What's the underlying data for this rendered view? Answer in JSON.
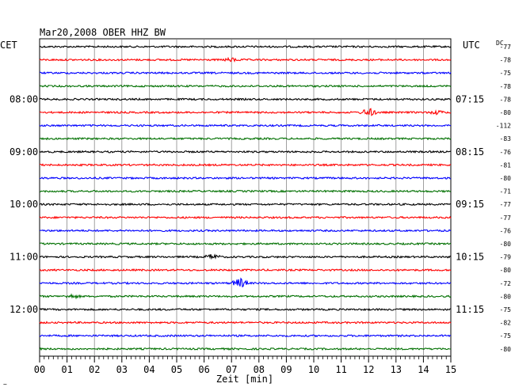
{
  "chart_data": {
    "type": "line",
    "title": "Mar20,2008   OBER HHZ BW",
    "left_axis_label": "CET",
    "right_axis_label": "UTC",
    "dc_label": "DC",
    "xlabel": "Zeit [min]",
    "xlim": [
      0,
      15
    ],
    "x_ticks": [
      "00",
      "01",
      "02",
      "03",
      "04",
      "05",
      "06",
      "07",
      "08",
      "09",
      "10",
      "11",
      "12",
      "13",
      "14",
      "15"
    ],
    "trace_colors": [
      "#000000",
      "#ff0000",
      "#0000ff",
      "#007000"
    ],
    "left_time_labels": [
      {
        "row": 4,
        "text": "08:00"
      },
      {
        "row": 8,
        "text": "09:00"
      },
      {
        "row": 12,
        "text": "10:00"
      },
      {
        "row": 16,
        "text": "11:00"
      },
      {
        "row": 20,
        "text": "12:00"
      }
    ],
    "right_time_labels": [
      {
        "row": 4,
        "text": "07:15"
      },
      {
        "row": 8,
        "text": "08:15"
      },
      {
        "row": 12,
        "text": "09:15"
      },
      {
        "row": 16,
        "text": "10:15"
      },
      {
        "row": 20,
        "text": "11:15"
      }
    ],
    "dc_values": [
      "-77",
      "-78",
      "-75",
      "-78",
      "-78",
      "-80",
      "-112",
      "-83",
      "-76",
      "-81",
      "-80",
      "-71",
      "-77",
      "-77",
      "-76",
      "-80",
      "-79",
      "-80",
      "-72",
      "-80",
      "-75",
      "-82",
      "-75",
      "-80"
    ],
    "events": [
      {
        "row": 1,
        "minute": 7.0,
        "amp": 2
      },
      {
        "row": 5,
        "minute": 12.0,
        "amp": 5
      },
      {
        "row": 5,
        "minute": 14.5,
        "amp": 2
      },
      {
        "row": 16,
        "minute": 6.3,
        "amp": 3
      },
      {
        "row": 18,
        "minute": 7.3,
        "amp": 6
      },
      {
        "row": 19,
        "minute": 1.2,
        "amp": 2
      }
    ],
    "footer_mark": "~"
  }
}
